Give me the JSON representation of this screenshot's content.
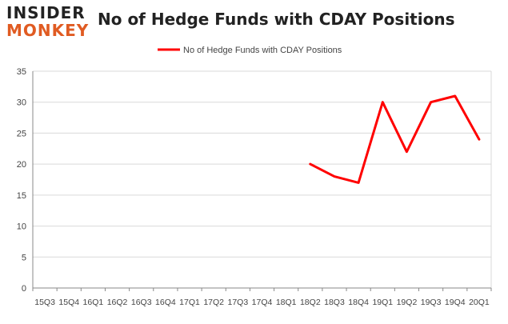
{
  "logo": {
    "top": "INSIDER",
    "bottom": "MONKEY"
  },
  "chart_data": {
    "type": "line",
    "title": "No of Hedge Funds with CDAY Positions",
    "xlabel": "",
    "ylabel": "",
    "categories": [
      "15Q3",
      "15Q4",
      "16Q1",
      "16Q2",
      "16Q3",
      "16Q4",
      "17Q1",
      "17Q2",
      "17Q3",
      "17Q4",
      "18Q1",
      "18Q2",
      "18Q3",
      "18Q4",
      "19Q1",
      "19Q2",
      "19Q3",
      "19Q4",
      "20Q1"
    ],
    "series": [
      {
        "name": "No of Hedge Funds with CDAY Positions",
        "color": "#ff0000",
        "values": [
          null,
          null,
          null,
          null,
          null,
          null,
          null,
          null,
          null,
          null,
          null,
          20,
          18,
          17,
          30,
          22,
          30,
          31,
          24
        ]
      }
    ],
    "ylim": [
      0,
      35
    ],
    "yticks": [
      "0",
      "5",
      "10",
      "15",
      "20",
      "25",
      "30",
      "35"
    ],
    "grid": true,
    "legend": "top-center",
    "colors": {
      "grid": "#d9d9d9",
      "axis": "#888888",
      "line": "#ff0000",
      "brand": "#e05b22"
    }
  }
}
